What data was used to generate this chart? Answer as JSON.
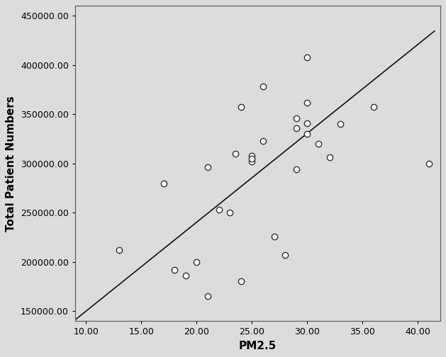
{
  "x_data": [
    13,
    17,
    18,
    19,
    20,
    21,
    21,
    22,
    23,
    23.5,
    24,
    24,
    25,
    25,
    25,
    26,
    26,
    27,
    28,
    29,
    29,
    29,
    30,
    30,
    30,
    30,
    31,
    32,
    33,
    36,
    41
  ],
  "y_data": [
    212000,
    280000,
    192000,
    186000,
    200000,
    296000,
    165000,
    253000,
    250000,
    310000,
    357000,
    180000,
    308000,
    302000,
    305000,
    378000,
    323000,
    226000,
    207000,
    336000,
    346000,
    294000,
    408000,
    330000,
    341000,
    362000,
    320000,
    306000,
    340000,
    357000,
    300000
  ],
  "reg_x0": 9.0,
  "reg_x1": 41.5,
  "reg_slope": 9032.0,
  "reg_intercept": 59680.0,
  "xlabel": "PM2.5",
  "ylabel": "Total Patient Numbers",
  "xlim": [
    9.0,
    42.0
  ],
  "ylim": [
    140000,
    460000
  ],
  "xticks": [
    10.0,
    15.0,
    20.0,
    25.0,
    30.0,
    35.0,
    40.0
  ],
  "yticks": [
    150000,
    200000,
    250000,
    300000,
    350000,
    400000,
    450000
  ],
  "plot_bg_color": "#dcdcdc",
  "fig_bg_color": "#dcdcdc",
  "marker_facecolor": "white",
  "marker_edgecolor": "#333333",
  "line_color": "#111111",
  "marker_size": 6,
  "marker_linewidth": 1.0,
  "line_width": 1.2,
  "xlabel_fontsize": 11,
  "ylabel_fontsize": 11,
  "tick_fontsize": 9
}
